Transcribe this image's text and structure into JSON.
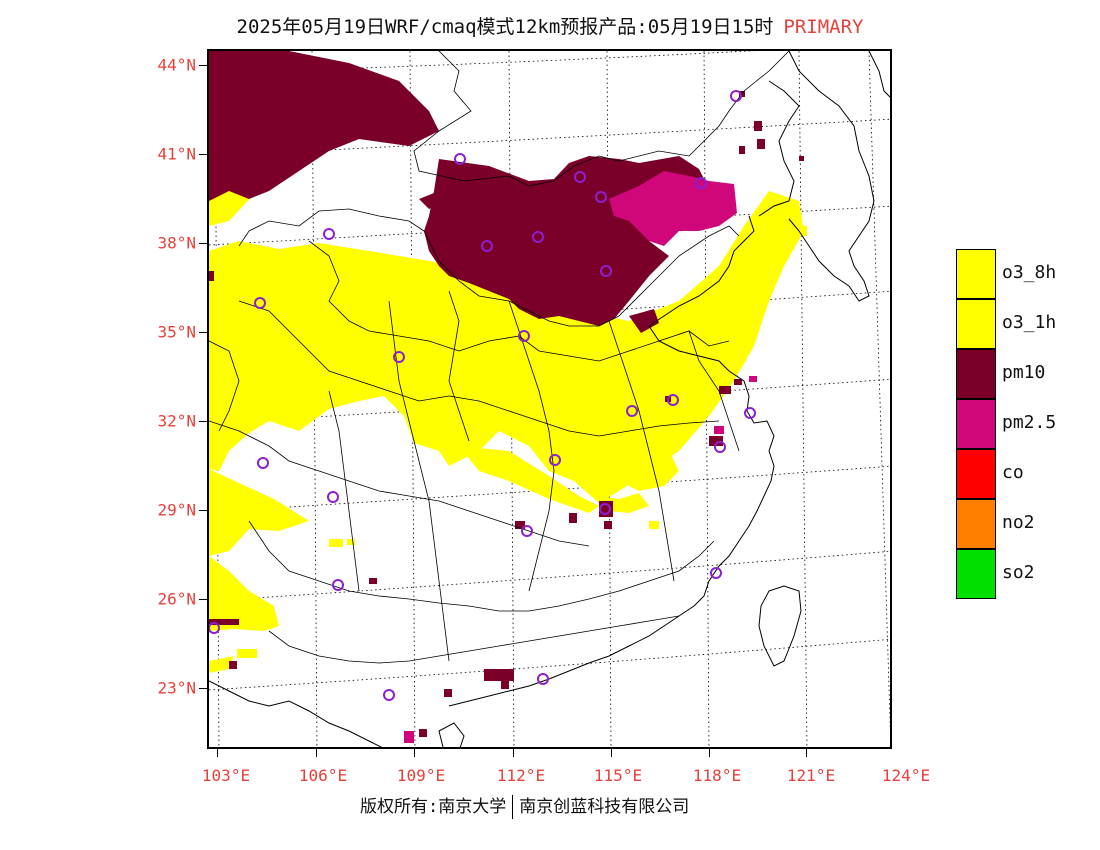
{
  "title": {
    "main": "2025年05月19日WRF/cmaq模式12km预报产品:05月19日15时",
    "tag": "PRIMARY"
  },
  "axes": {
    "lat_labels": [
      "44°N",
      "41°N",
      "38°N",
      "35°N",
      "32°N",
      "29°N",
      "26°N",
      "23°N"
    ],
    "lon_labels": [
      "103°E",
      "106°E",
      "109°E",
      "112°E",
      "115°E",
      "118°E",
      "121°E",
      "124°E"
    ]
  },
  "legend": {
    "items": [
      {
        "label": "o3_8h",
        "color": "#ffff00"
      },
      {
        "label": "o3_1h",
        "color": "#ffff00"
      },
      {
        "label": "pm10",
        "color": "#7b0029"
      },
      {
        "label": "pm2.5",
        "color": "#d0077a"
      },
      {
        "label": "co",
        "color": "#ff0000"
      },
      {
        "label": "no2",
        "color": "#ff7f00"
      },
      {
        "label": "so2",
        "color": "#00e000"
      }
    ]
  },
  "copyright": {
    "left": "版权所有:南京大学",
    "right": "南京创蓝科技有限公司"
  },
  "colors": {
    "axis_label": "#e8403a",
    "o3": "#ffff00",
    "pm10": "#7b0029",
    "pm25": "#d0077a",
    "station": "#8b1fd1"
  }
}
